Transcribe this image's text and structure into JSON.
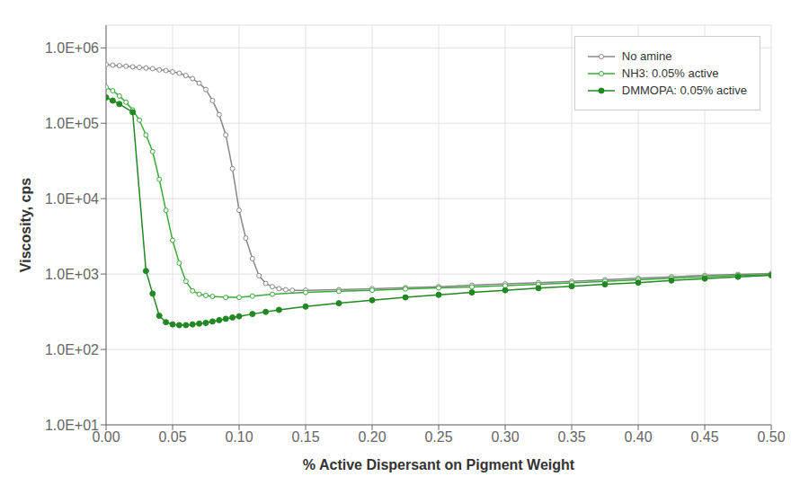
{
  "chart_data": {
    "type": "line",
    "xlabel": "% Active Dispersant on Pigment Weight",
    "ylabel": "Viscosity, cps",
    "log": "y",
    "grid": true,
    "legend": "upper right",
    "xlim": [
      0.0,
      0.5
    ],
    "ylim": [
      10,
      2000000
    ],
    "xticks": [
      {
        "value": 0.0,
        "label": "0.00"
      },
      0.05,
      {
        "value": 0.1,
        "label": "0.10"
      },
      0.15,
      {
        "value": 0.2,
        "label": "0.20"
      },
      0.25,
      {
        "value": 0.3,
        "label": "0.30"
      },
      0.35,
      {
        "value": 0.4,
        "label": "0.40"
      },
      0.45,
      {
        "value": 0.5,
        "label": "0.50"
      }
    ],
    "yticks": [
      {
        "value": 10,
        "label": "1.0E+01"
      },
      {
        "value": 100,
        "label": "1.0E+02"
      },
      {
        "value": 1000,
        "label": "1.0E+03"
      },
      {
        "value": 10000,
        "label": "1.0E+04"
      },
      {
        "value": 100000,
        "label": "1.0E+05"
      },
      {
        "value": 1000000,
        "label": "1.0E+06"
      }
    ],
    "series": [
      {
        "name": "No amine",
        "color": "#888888",
        "marker": "open_circle",
        "x": [
          0.0,
          0.005,
          0.01,
          0.015,
          0.02,
          0.025,
          0.03,
          0.035,
          0.04,
          0.045,
          0.05,
          0.055,
          0.06,
          0.065,
          0.07,
          0.075,
          0.08,
          0.085,
          0.09,
          0.095,
          0.1,
          0.105,
          0.11,
          0.115,
          0.12,
          0.125,
          0.13,
          0.135,
          0.14,
          0.15,
          0.175,
          0.2,
          0.225,
          0.25,
          0.275,
          0.3,
          0.325,
          0.35,
          0.375,
          0.4,
          0.425,
          0.45,
          0.475,
          0.5
        ],
        "values": [
          600000,
          590000,
          580000,
          570000,
          560000,
          550000,
          540000,
          530000,
          510000,
          500000,
          480000,
          460000,
          430000,
          390000,
          340000,
          280000,
          200000,
          130000,
          70000,
          25000,
          7000,
          3000,
          1600,
          950,
          750,
          680,
          640,
          620,
          610,
          610,
          620,
          640,
          660,
          680,
          710,
          740,
          770,
          800,
          840,
          880,
          920,
          960,
          990,
          1020
        ]
      },
      {
        "name": "NH3: 0.05% active",
        "color": "#3aaa3a",
        "marker": "open_circle",
        "x": [
          0.0,
          0.005,
          0.01,
          0.015,
          0.02,
          0.025,
          0.03,
          0.035,
          0.04,
          0.045,
          0.05,
          0.055,
          0.06,
          0.065,
          0.07,
          0.075,
          0.08,
          0.09,
          0.1,
          0.11,
          0.125,
          0.15,
          0.175,
          0.2,
          0.225,
          0.25,
          0.275,
          0.3,
          0.325,
          0.35,
          0.375,
          0.4,
          0.425,
          0.45,
          0.475,
          0.5
        ],
        "values": [
          300000,
          270000,
          230000,
          190000,
          150000,
          110000,
          70000,
          42000,
          18000,
          7000,
          2800,
          1400,
          800,
          600,
          540,
          520,
          505,
          490,
          490,
          510,
          540,
          570,
          590,
          610,
          635,
          655,
          675,
          700,
          730,
          760,
          800,
          840,
          880,
          920,
          960,
          985
        ]
      },
      {
        "name": "DMMOPA: 0.05% active",
        "color": "#228822",
        "marker": "circle",
        "x": [
          0.0,
          0.005,
          0.01,
          0.02,
          0.03,
          0.035,
          0.04,
          0.045,
          0.05,
          0.055,
          0.06,
          0.065,
          0.07,
          0.075,
          0.08,
          0.085,
          0.09,
          0.095,
          0.1,
          0.11,
          0.12,
          0.13,
          0.15,
          0.175,
          0.2,
          0.225,
          0.25,
          0.275,
          0.3,
          0.325,
          0.35,
          0.375,
          0.4,
          0.425,
          0.45,
          0.475,
          0.5
        ],
        "values": [
          220000,
          200000,
          180000,
          140000,
          1100,
          550,
          280,
          230,
          215,
          210,
          210,
          215,
          220,
          225,
          235,
          245,
          255,
          265,
          275,
          295,
          315,
          335,
          370,
          410,
          450,
          490,
          530,
          570,
          610,
          650,
          690,
          730,
          770,
          820,
          870,
          920,
          960
        ]
      }
    ]
  }
}
